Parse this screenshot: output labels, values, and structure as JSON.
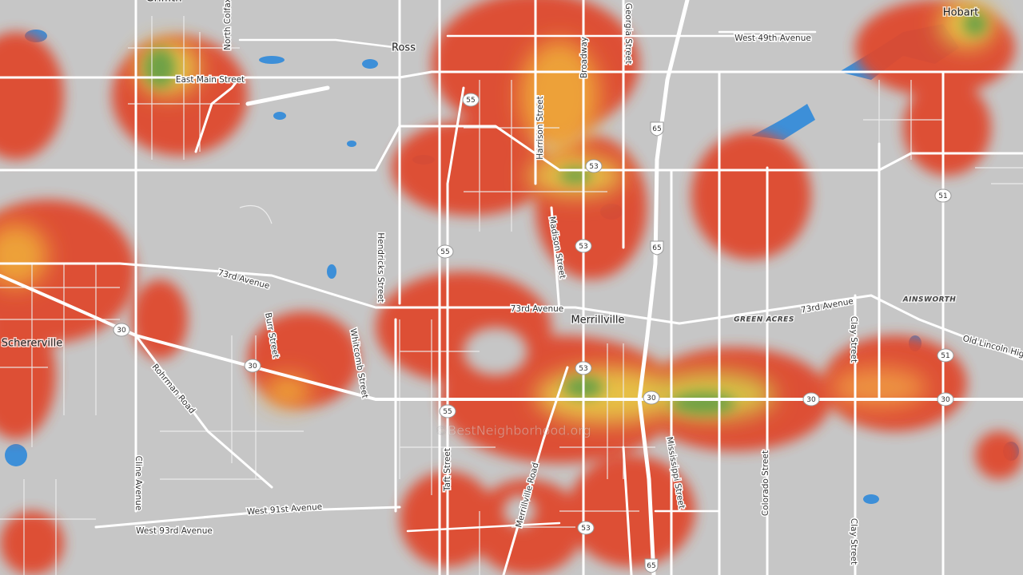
{
  "places": [
    "Griffith",
    "Hobart",
    "Ross",
    "Merrillville",
    "Schererville",
    "GREEN ACRES",
    "AINSWORTH"
  ],
  "streets": [
    "North Colfax",
    "West 49th Avenue",
    "East Main Street",
    "Harrison Street",
    "Broadway",
    "Georgia Street",
    "Hendricks Street",
    "Madison Street",
    "73rd Avenue",
    "73rd Avenue",
    "73rd Avenue",
    "Old Lincoln Hig",
    "Burr Street",
    "Whitcomb Street",
    "Rohrman Road",
    "Clay Street",
    "Clay Street",
    "Colorado Street",
    "Mississippi Street",
    "Merrillville Road",
    "Taft Street",
    "Cline Avenue",
    "West 91st Avenue",
    "West 93rd Avenue"
  ],
  "shields": [
    "55",
    "53",
    "65",
    "51",
    "55",
    "53",
    "65",
    "30",
    "30",
    "53",
    "55",
    "30",
    "30",
    "30",
    "51",
    "53",
    "65"
  ],
  "watermark": "©BestNeighborhood.org"
}
